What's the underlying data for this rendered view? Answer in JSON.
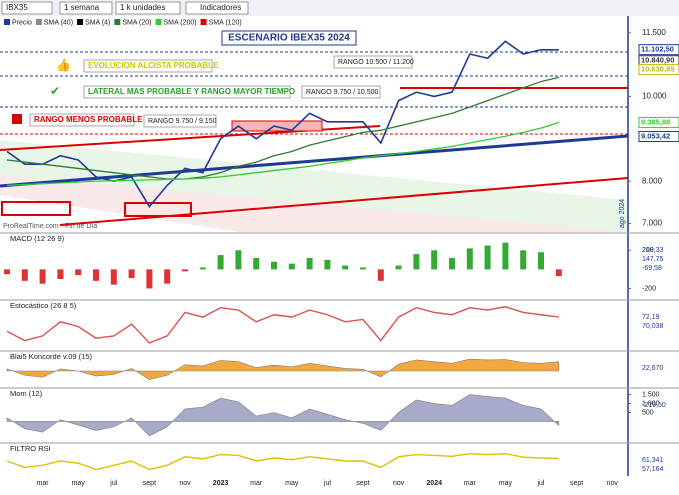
{
  "toolbar": {
    "symbol": "IBX35",
    "period": "1 semana",
    "units": "1 k unidades",
    "indicators": "Indicadores"
  },
  "legend": [
    "Precio",
    "SMA (40)",
    "SMA (4)",
    "SMA (20)",
    "SMA (200)",
    "SMA (120)"
  ],
  "chart_data": {
    "type": "line",
    "title": "ESCENARIO IBEX35 2024",
    "annotations": {
      "up": "EVOLUCION ALCISTA PROBABLE",
      "lateral": "LATERAL MAS PROBABLE Y RANGO MAYOR TIEMPO",
      "down": "RANGO MENOS PROBABLE",
      "r1": "RANGO 10.500 / 11.200",
      "r2": "RANGO 9.750 / 10.500",
      "r3": "RANGO 9.750 / 9.150",
      "source": "ProRealTime.com - Fin de Día",
      "date": "ago 2024"
    },
    "categories": [
      null,
      null,
      "mar",
      null,
      "may",
      null,
      "jul",
      null,
      "sept",
      null,
      "nov",
      null,
      "2023",
      null,
      "mar",
      null,
      "may",
      null,
      "jul",
      null,
      "sept",
      null,
      "nov",
      null,
      "2024",
      null,
      "mar",
      null,
      "may",
      null,
      "jul",
      null,
      "sept",
      null,
      "nov",
      null
    ],
    "series": [
      {
        "name": "Precio",
        "color": "#1f3a93",
        "values": [
          8700,
          8400,
          8400,
          8600,
          8500,
          8100,
          8000,
          8100,
          7400,
          7900,
          8300,
          8200,
          9000,
          9300,
          9000,
          9300,
          9200,
          9600,
          9400,
          9400,
          9400,
          8900,
          9900,
          10100,
          10000,
          10100,
          11000,
          10900,
          11300,
          11000,
          11100,
          11100,
          null,
          null,
          null,
          null
        ]
      },
      {
        "name": "SMA (40)",
        "color": "#2e7d32",
        "values": [
          8500,
          8450,
          8400,
          8350,
          8300,
          8250,
          8200,
          8150,
          8100,
          8050,
          8050,
          8100,
          8200,
          8350,
          8450,
          8600,
          8700,
          8850,
          8950,
          9050,
          9150,
          9200,
          9300,
          9400,
          9500,
          9600,
          9750,
          9900,
          10050,
          10200,
          10350,
          10450,
          null,
          null,
          null,
          null
        ]
      },
      {
        "name": "SMA (200)",
        "color": "#33cc33",
        "values": [
          7900,
          7920,
          7940,
          7960,
          7980,
          8000,
          8010,
          8020,
          8030,
          8040,
          8050,
          8070,
          8100,
          8150,
          8200,
          8250,
          8300,
          8350,
          8420,
          8480,
          8550,
          8600,
          8650,
          8700,
          8760,
          8820,
          8900,
          8980,
          9060,
          9150,
          9250,
          9385.88,
          null,
          null,
          null,
          null
        ]
      }
    ],
    "ylim": [
      6800,
      11850
    ],
    "yticks": [
      {
        "value": 7000,
        "label": "7.000"
      },
      {
        "value": 8000,
        "label": "8.000"
      },
      {
        "value": 10000,
        "label": "10.000"
      },
      {
        "value": 11500,
        "label": "11.500"
      }
    ],
    "price_labels": [
      {
        "value": 11102.5,
        "label": "11.102,50",
        "color": "#1f3a93"
      },
      {
        "value": 10840.9,
        "label": "10.840,90",
        "color": "#333333"
      },
      {
        "value": 10630.85,
        "label": "10.630,85",
        "color": "#b8b800"
      },
      {
        "value": 9385.88,
        "label": "9.385,88",
        "color": "#33cc33"
      },
      {
        "value": 9053.42,
        "label": "9.053,42",
        "color": "#1f3a93"
      }
    ]
  },
  "panels": [
    {
      "type": "bar",
      "title": "MACD (12 26 9)",
      "color": "#33aa33",
      "ylim": [
        -300,
        350
      ],
      "yticks": [
        {
          "value": 200,
          "label": "200"
        },
        {
          "value": -200,
          "label": "-200"
        }
      ],
      "labels": [
        "218,33",
        "147,75",
        "-69,58"
      ],
      "values": [
        -50,
        -120,
        -150,
        -100,
        -60,
        -120,
        -160,
        -90,
        -200,
        -150,
        -20,
        20,
        150,
        200,
        120,
        80,
        60,
        120,
        100,
        40,
        20,
        -120,
        40,
        160,
        200,
        120,
        220,
        250,
        280,
        200,
        180,
        -70,
        null,
        null,
        null,
        null
      ]
    },
    {
      "type": "line",
      "title": "Estocástico (26 8 5)",
      "color": "#d9534f",
      "ylim": [
        0,
        100
      ],
      "yticks": [],
      "labels": [
        "72,19",
        "70,038"
      ],
      "values": [
        40,
        20,
        30,
        60,
        50,
        25,
        30,
        55,
        15,
        30,
        80,
        70,
        90,
        85,
        60,
        75,
        70,
        85,
        75,
        60,
        65,
        20,
        70,
        90,
        80,
        75,
        90,
        85,
        92,
        80,
        75,
        70,
        null,
        null,
        null,
        null
      ]
    },
    {
      "type": "area",
      "title": "Blai5 Koncorde v.09 (15)",
      "color": "#f08c00",
      "ylim": [
        -40,
        40
      ],
      "yticks": [],
      "labels": [
        "22,670"
      ],
      "values": [
        5,
        -10,
        -15,
        5,
        0,
        -12,
        -8,
        6,
        -20,
        -10,
        15,
        12,
        25,
        22,
        8,
        14,
        10,
        18,
        12,
        6,
        4,
        -14,
        16,
        26,
        22,
        18,
        28,
        26,
        27,
        20,
        18,
        22,
        null,
        null,
        null,
        null
      ]
    },
    {
      "type": "area",
      "title": "Mom (12)",
      "color": "#8a8fb8",
      "ylim": [
        -1200,
        1700
      ],
      "yticks": [
        {
          "value": 1500,
          "label": "1.500"
        },
        {
          "value": 1000,
          "label": "1.000"
        },
        {
          "value": 500,
          "label": "500"
        }
      ],
      "labels": [
        "-219,50"
      ],
      "values": [
        200,
        -400,
        -600,
        100,
        -200,
        -500,
        -300,
        200,
        -800,
        -300,
        700,
        800,
        1300,
        1100,
        300,
        500,
        200,
        700,
        400,
        100,
        -100,
        -500,
        500,
        1200,
        1000,
        900,
        1500,
        1400,
        1300,
        900,
        700,
        -219.5,
        null,
        null,
        null,
        null
      ]
    },
    {
      "type": "line",
      "title": "FILTRO RSI",
      "color": "#e0c000",
      "ylim": [
        20,
        90
      ],
      "yticks": [],
      "labels": [
        "61,341",
        "57,164"
      ],
      "values": [
        55,
        40,
        45,
        55,
        50,
        35,
        45,
        55,
        35,
        45,
        65,
        60,
        70,
        68,
        55,
        62,
        58,
        65,
        60,
        55,
        55,
        40,
        65,
        70,
        68,
        66,
        72,
        70,
        72,
        64,
        62,
        61.341,
        null,
        null,
        null,
        null
      ]
    }
  ]
}
